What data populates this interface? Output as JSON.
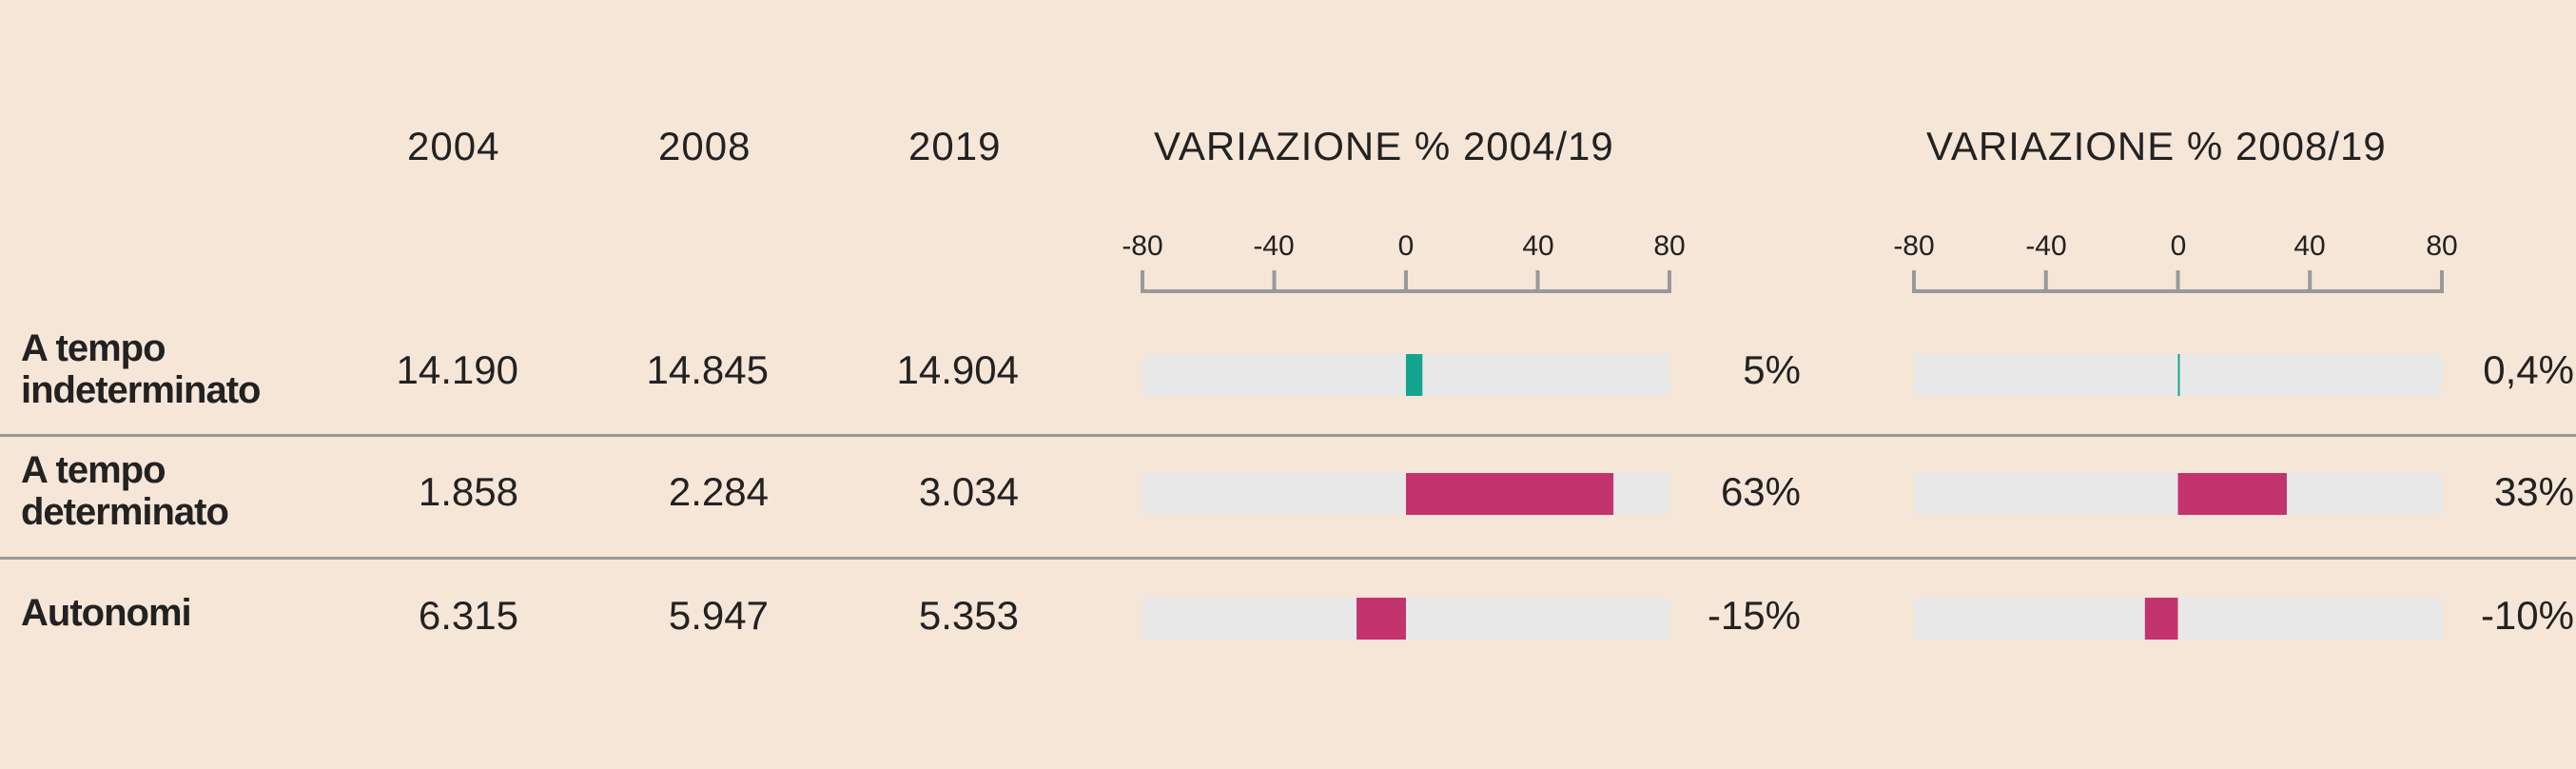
{
  "header": {
    "years": [
      "2004",
      "2008",
      "2019"
    ],
    "variation_titles": [
      "VARIAZIONE % 2004/19",
      "VARIAZIONE % 2008/19"
    ]
  },
  "chart_data": {
    "type": "table",
    "columns": [
      "2004",
      "2008",
      "2019",
      "VARIAZIONE % 2004/19",
      "VARIAZIONE % 2008/19"
    ],
    "axis_ticks": [
      "-80",
      "-40",
      "0",
      "40",
      "80"
    ],
    "xlim": [
      -80,
      80
    ],
    "colors": {
      "positive_small": "#14a58f",
      "bar": "#c3346f",
      "track": "#e8e8e8"
    },
    "rows": [
      {
        "label_lines": [
          "A tempo",
          "indeterminato"
        ],
        "values": [
          "14.190",
          "14.845",
          "14.904"
        ],
        "var_2004_19": 5,
        "var_2004_19_label": "5%",
        "var_2008_19": 0.4,
        "var_2008_19_label": "0,4%",
        "color": "#14a58f"
      },
      {
        "label_lines": [
          "A tempo",
          "determinato"
        ],
        "values": [
          "1.858",
          "2.284",
          "3.034"
        ],
        "var_2004_19": 63,
        "var_2004_19_label": "63%",
        "var_2008_19": 33,
        "var_2008_19_label": "33%",
        "color": "#c3346f"
      },
      {
        "label_lines": [
          "Autonomi"
        ],
        "values": [
          "6.315",
          "5.947",
          "5.353"
        ],
        "var_2004_19": -15,
        "var_2004_19_label": "-15%",
        "var_2008_19": -10,
        "var_2008_19_label": "-10%",
        "color": "#c3346f"
      }
    ]
  }
}
